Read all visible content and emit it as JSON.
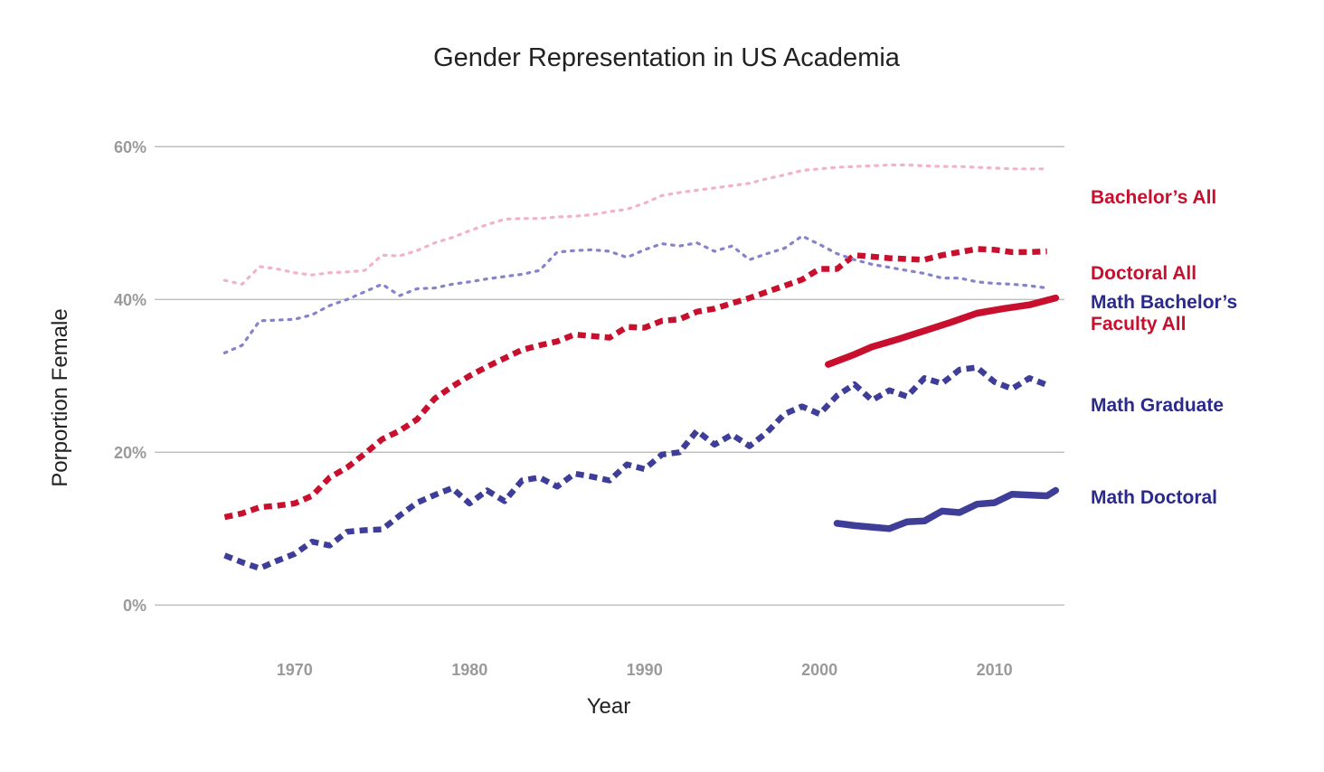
{
  "chart_data": {
    "type": "line",
    "title": "Gender Representation in US Academia",
    "xlabel": "Year",
    "ylabel": "Porportion Female",
    "xlim": [
      1962,
      2014
    ],
    "ylim": [
      -6,
      65
    ],
    "x_ticks": [
      {
        "value": 1970,
        "label": "1970"
      },
      {
        "value": 1980,
        "label": "1980"
      },
      {
        "value": 1990,
        "label": "1990"
      },
      {
        "value": 2000,
        "label": "2000"
      },
      {
        "value": 2010,
        "label": "2010"
      }
    ],
    "y_ticks": [
      {
        "value": 0,
        "label": "0%"
      },
      {
        "value": 20,
        "label": "20%"
      },
      {
        "value": 40,
        "label": "40%"
      },
      {
        "value": 60,
        "label": "60%"
      }
    ],
    "grid": true,
    "legend": "direct-labels-right",
    "series": [
      {
        "name": "Bachelor’s All",
        "label_lines": [
          "Bachelor’s All"
        ],
        "label_color": "#c8102e",
        "color": "#f2b3c4",
        "style": "dotted",
        "x": [
          1966,
          1967,
          1968,
          1969,
          1970,
          1971,
          1972,
          1973,
          1974,
          1975,
          1976,
          1977,
          1978,
          1979,
          1980,
          1981,
          1982,
          1983,
          1984,
          1985,
          1986,
          1987,
          1988,
          1989,
          1990,
          1991,
          1992,
          1993,
          1994,
          1995,
          1996,
          1997,
          1998,
          1999,
          2000,
          2001,
          2002,
          2003,
          2004,
          2005,
          2006,
          2007,
          2008,
          2009,
          2010,
          2011,
          2012,
          2013
        ],
        "y": [
          42.5,
          42.0,
          44.3,
          44.0,
          43.5,
          43.2,
          43.5,
          43.6,
          43.8,
          45.8,
          45.7,
          46.4,
          47.4,
          48.1,
          49.0,
          49.8,
          50.5,
          50.6,
          50.6,
          50.8,
          50.9,
          51.1,
          51.5,
          51.8,
          52.6,
          53.6,
          54.0,
          54.3,
          54.6,
          54.9,
          55.2,
          55.8,
          56.3,
          56.9,
          57.1,
          57.3,
          57.4,
          57.5,
          57.6,
          57.6,
          57.5,
          57.4,
          57.4,
          57.3,
          57.2,
          57.1,
          57.1,
          57.1
        ]
      },
      {
        "name": "Doctoral All",
        "label_lines": [
          "Doctoral All"
        ],
        "label_color": "#c8102e",
        "color": "#c8102e",
        "style": "dashed",
        "x": [
          1966,
          1967,
          1968,
          1969,
          1970,
          1971,
          1972,
          1973,
          1974,
          1975,
          1976,
          1977,
          1978,
          1979,
          1980,
          1981,
          1982,
          1983,
          1984,
          1985,
          1986,
          1987,
          1988,
          1989,
          1990,
          1991,
          1992,
          1993,
          1994,
          1995,
          1996,
          1997,
          1998,
          1999,
          2000,
          2001,
          2002,
          2003,
          2004,
          2005,
          2006,
          2007,
          2008,
          2009,
          2010,
          2011,
          2012,
          2013
        ],
        "y": [
          11.5,
          12.0,
          12.8,
          13.0,
          13.3,
          14.3,
          16.7,
          18.0,
          19.8,
          21.7,
          22.8,
          24.3,
          27.0,
          28.6,
          30.0,
          31.2,
          32.3,
          33.4,
          34.0,
          34.5,
          35.4,
          35.2,
          35.0,
          36.4,
          36.3,
          37.2,
          37.4,
          38.4,
          38.8,
          39.5,
          40.2,
          41.0,
          41.8,
          42.6,
          44.0,
          44.0,
          45.8,
          45.6,
          45.4,
          45.3,
          45.2,
          45.8,
          46.2,
          46.6,
          46.5,
          46.2,
          46.2,
          46.3
        ]
      },
      {
        "name": "Math Bachelor’s",
        "label_lines": [
          "Math Bachelor’s"
        ],
        "label_color": "#2b2a8c",
        "color": "#8583c9",
        "style": "dotted",
        "x": [
          1966,
          1967,
          1968,
          1969,
          1970,
          1971,
          1972,
          1973,
          1974,
          1975,
          1976,
          1977,
          1978,
          1979,
          1980,
          1981,
          1982,
          1983,
          1984,
          1985,
          1986,
          1987,
          1988,
          1989,
          1990,
          1991,
          1992,
          1993,
          1994,
          1995,
          1996,
          1997,
          1998,
          1999,
          2000,
          2001,
          2002,
          2003,
          2004,
          2005,
          2006,
          2007,
          2008,
          2009,
          2010,
          2011,
          2012,
          2013
        ],
        "y": [
          33.0,
          34.0,
          37.2,
          37.3,
          37.4,
          38.0,
          39.2,
          40.0,
          41.0,
          42.0,
          40.5,
          41.4,
          41.5,
          42.0,
          42.3,
          42.7,
          43.0,
          43.3,
          43.8,
          46.2,
          46.4,
          46.5,
          46.3,
          45.5,
          46.5,
          47.3,
          47.0,
          47.4,
          46.3,
          47.0,
          45.2,
          46.0,
          46.7,
          48.3,
          47.2,
          46.0,
          45.2,
          44.6,
          44.2,
          43.8,
          43.4,
          42.8,
          42.8,
          42.3,
          42.1,
          42.0,
          41.8,
          41.5
        ]
      },
      {
        "name": "Faculty All",
        "label_lines": [
          "Faculty All"
        ],
        "label_color": "#c8102e",
        "color": "#c8102e",
        "style": "solid",
        "x": [
          2000.5,
          2002,
          2003,
          2004.5,
          2006,
          2007.5,
          2009,
          2010.5,
          2012,
          2013.5
        ],
        "y": [
          31.5,
          32.8,
          33.8,
          34.8,
          35.9,
          37.0,
          38.2,
          38.8,
          39.3,
          40.2
        ]
      },
      {
        "name": "Math Graduate",
        "label_lines": [
          "Math Graduate"
        ],
        "label_color": "#2b2a8c",
        "color": "#3e3d98",
        "style": "dashed",
        "x": [
          1966,
          1967,
          1968,
          1969,
          1970,
          1971,
          1972,
          1973,
          1974,
          1975,
          1976,
          1977,
          1978,
          1979,
          1980,
          1981,
          1982,
          1983,
          1984,
          1985,
          1986,
          1987,
          1988,
          1989,
          1990,
          1991,
          1992,
          1993,
          1994,
          1995,
          1996,
          1997,
          1998,
          1999,
          2000,
          2001,
          2002,
          2003,
          2004,
          2005,
          2006,
          2007,
          2008,
          2009,
          2010,
          2011,
          2012,
          2013
        ],
        "y": [
          6.5,
          5.6,
          4.8,
          5.8,
          6.7,
          8.3,
          7.8,
          9.6,
          9.8,
          9.9,
          11.7,
          13.4,
          14.4,
          15.3,
          13.3,
          15.0,
          13.6,
          16.3,
          16.7,
          15.5,
          17.2,
          16.8,
          16.3,
          18.4,
          17.8,
          19.7,
          20.0,
          22.8,
          21.0,
          22.3,
          20.8,
          22.6,
          25.0,
          26.0,
          25.0,
          27.4,
          28.9,
          26.8,
          28.1,
          27.3,
          29.7,
          29.0,
          30.8,
          31.1,
          29.2,
          28.3,
          29.7,
          28.8
        ]
      },
      {
        "name": "Math Doctoral",
        "label_lines": [
          "Math Doctoral"
        ],
        "label_color": "#2b2a8c",
        "color": "#3e3d98",
        "style": "solid",
        "x": [
          2001,
          2002,
          2003,
          2004,
          2005,
          2006,
          2007,
          2008,
          2009,
          2010,
          2011,
          2012,
          2013,
          2013.5
        ],
        "y": [
          10.7,
          10.4,
          10.2,
          10.0,
          10.9,
          11.0,
          12.3,
          12.1,
          13.2,
          13.4,
          14.5,
          14.4,
          14.3,
          15.0
        ]
      }
    ]
  }
}
